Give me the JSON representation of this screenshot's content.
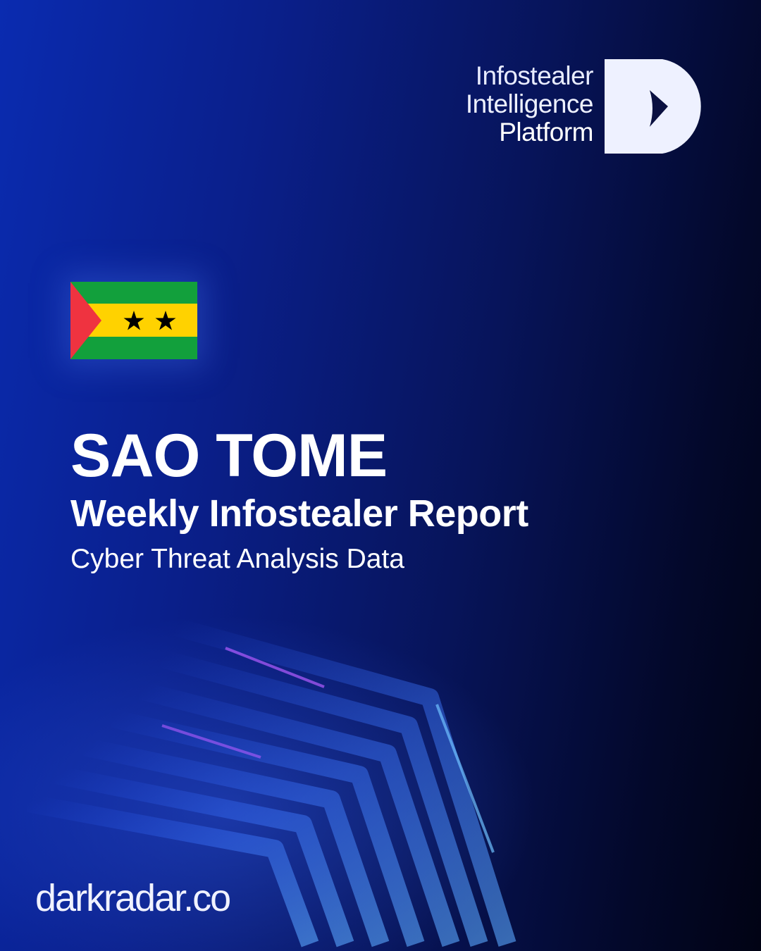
{
  "brand": {
    "line1": "Infostealer",
    "line2": "Intelligence",
    "line3": "Platform",
    "logo_icon": "d-chevron-logo"
  },
  "flag": {
    "country": "Sao Tome and Principe",
    "colors": {
      "green": "#12a03c",
      "yellow": "#ffd200",
      "red": "#ef3340",
      "star": "#000000"
    }
  },
  "hero": {
    "title": "SAO TOME",
    "subtitle": "Weekly Infostealer Report",
    "tagline": "Cyber Threat Analysis Data"
  },
  "footer": {
    "website": "darkradar.co"
  },
  "colors": {
    "background_start": "#0a2bb0",
    "background_end": "#010314",
    "accent": "#4a8cff"
  }
}
